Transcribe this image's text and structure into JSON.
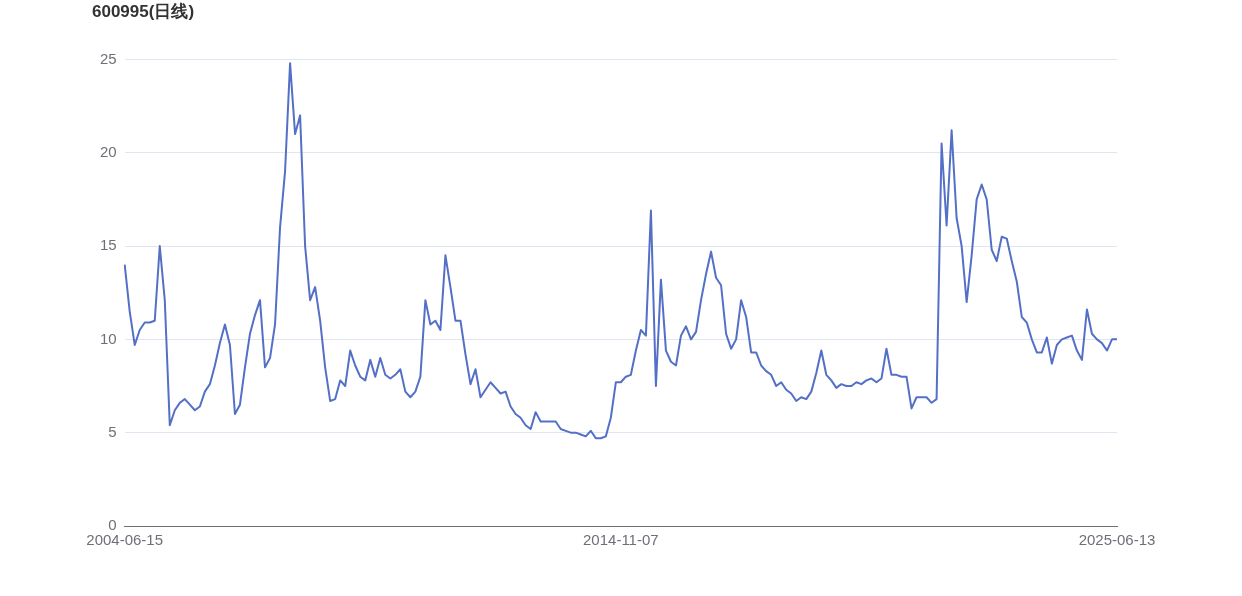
{
  "chart_data": {
    "type": "line",
    "title": "600995(日线)",
    "categories": [
      "2004-06-15",
      null,
      null,
      null,
      null,
      null,
      null,
      null,
      null,
      null,
      null,
      null,
      null,
      null,
      null,
      null,
      null,
      null,
      null,
      null,
      null,
      null,
      null,
      null,
      null,
      null,
      null,
      null,
      null,
      null,
      null,
      null,
      null,
      null,
      null,
      null,
      null,
      null,
      null,
      null,
      null,
      null,
      null,
      null,
      null,
      null,
      null,
      null,
      null,
      null,
      null,
      null,
      null,
      null,
      null,
      null,
      null,
      null,
      null,
      null,
      null,
      null,
      null,
      null,
      null,
      null,
      null,
      null,
      null,
      null,
      null,
      null,
      null,
      null,
      null,
      null,
      null,
      null,
      null,
      null,
      null,
      null,
      null,
      null,
      null,
      null,
      null,
      null,
      null,
      null,
      null,
      null,
      null,
      null,
      null,
      null,
      null,
      null,
      null,
      "2014-11-07",
      null,
      null,
      null,
      null,
      null,
      null,
      null,
      null,
      null,
      null,
      null,
      null,
      null,
      null,
      null,
      null,
      null,
      null,
      null,
      null,
      null,
      null,
      null,
      null,
      null,
      null,
      null,
      null,
      null,
      null,
      null,
      null,
      null,
      null,
      null,
      null,
      null,
      null,
      null,
      null,
      null,
      null,
      null,
      null,
      null,
      null,
      null,
      null,
      null,
      null,
      null,
      null,
      null,
      null,
      null,
      null,
      null,
      null,
      null,
      null,
      null,
      null,
      null,
      null,
      null,
      null,
      null,
      null,
      null,
      null,
      null,
      null,
      null,
      null,
      null,
      null,
      null,
      null,
      null,
      null,
      null,
      null,
      null,
      null,
      null,
      null,
      null,
      null,
      null,
      null,
      null,
      null,
      null,
      null,
      null,
      null,
      null,
      null,
      "2025-06-13"
    ],
    "series": [
      {
        "color": "#5470c6",
        "values": [
          14.0,
          11.5,
          9.7,
          10.5,
          10.9,
          10.9,
          11.0,
          15.0,
          12.1,
          5.4,
          6.2,
          6.6,
          6.8,
          6.5,
          6.2,
          6.4,
          7.2,
          7.6,
          8.6,
          9.8,
          10.8,
          9.7,
          6.0,
          6.5,
          8.5,
          10.3,
          11.3,
          12.1,
          8.5,
          9.0,
          10.8,
          16.0,
          19.0,
          24.8,
          21.0,
          22.0,
          15.0,
          12.1,
          12.8,
          11.0,
          8.5,
          6.7,
          6.8,
          7.8,
          7.5,
          9.4,
          8.6,
          8.0,
          7.8,
          8.9,
          8.0,
          9.0,
          8.1,
          7.9,
          8.1,
          8.4,
          7.2,
          6.9,
          7.2,
          8.0,
          12.1,
          10.8,
          11.0,
          10.5,
          14.5,
          12.8,
          11.0,
          11.0,
          9.2,
          7.6,
          8.4,
          6.9,
          7.3,
          7.7,
          7.4,
          7.1,
          7.2,
          6.4,
          6.0,
          5.8,
          5.4,
          5.2,
          6.1,
          5.6,
          5.6,
          5.6,
          5.6,
          5.2,
          5.1,
          5.0,
          5.0,
          4.9,
          4.8,
          5.1,
          4.7,
          4.7,
          4.8,
          5.8,
          7.7,
          7.7,
          8.0,
          8.1,
          9.4,
          10.5,
          10.2,
          16.9,
          7.5,
          13.2,
          9.4,
          8.8,
          8.6,
          10.2,
          10.7,
          10.0,
          10.4,
          12.1,
          13.5,
          14.7,
          13.3,
          12.9,
          10.3,
          9.5,
          10.0,
          12.1,
          11.2,
          9.3,
          9.3,
          8.6,
          8.3,
          8.1,
          7.5,
          7.7,
          7.3,
          7.1,
          6.7,
          6.9,
          6.8,
          7.2,
          8.2,
          9.4,
          8.1,
          7.8,
          7.4,
          7.6,
          7.5,
          7.5,
          7.7,
          7.6,
          7.8,
          7.9,
          7.7,
          7.9,
          9.5,
          8.1,
          8.1,
          8.0,
          8.0,
          6.3,
          6.9,
          6.9,
          6.9,
          6.6,
          6.8,
          20.5,
          16.1,
          21.2,
          16.5,
          15.0,
          12.0,
          14.5,
          17.5,
          18.3,
          17.5,
          14.8,
          14.2,
          15.5,
          15.4,
          14.2,
          13.1,
          11.2,
          10.9,
          10.0,
          9.3,
          9.3,
          10.1,
          8.7,
          9.7,
          10.0,
          10.1,
          10.2,
          9.4,
          8.9,
          11.6,
          10.3,
          10.0,
          9.8,
          9.4,
          10.0,
          10.0
        ]
      }
    ],
    "ylim": [
      0,
      25
    ],
    "yticks": [
      0,
      5,
      10,
      15,
      20,
      25
    ],
    "grid": "y",
    "legend": false,
    "marker": "none",
    "line_style": "solid"
  }
}
